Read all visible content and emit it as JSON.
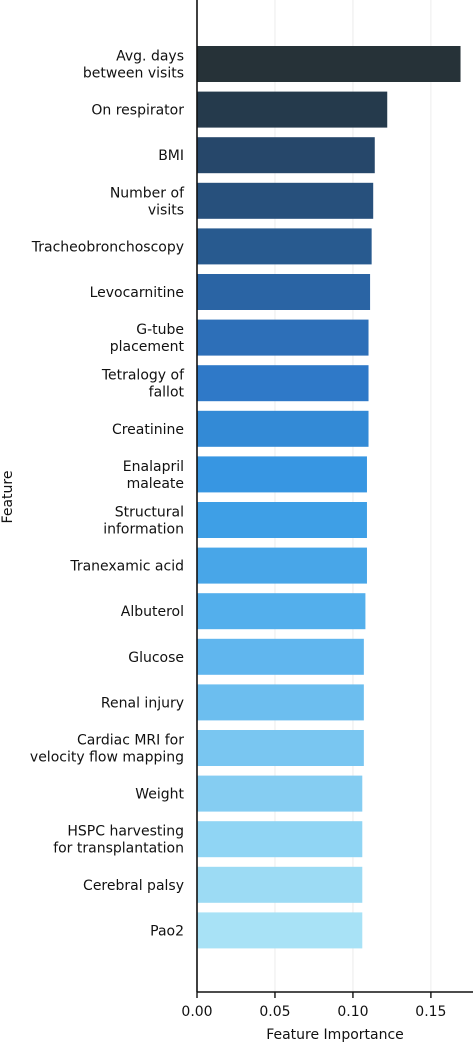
{
  "chart_data": {
    "type": "bar",
    "orientation": "horizontal",
    "title": "",
    "xlabel": "Feature Importance",
    "ylabel": "Feature",
    "xlim": [
      0,
      0.177
    ],
    "xticks": [
      0.0,
      0.05,
      0.1,
      0.15
    ],
    "xtick_labels": [
      "0.00",
      "0.05",
      "0.10",
      "0.15"
    ],
    "grid": "vertical",
    "categories": [
      [
        "Avg. days",
        "between visits"
      ],
      [
        "On respirator"
      ],
      [
        "BMI"
      ],
      [
        "Number of",
        "visits"
      ],
      [
        "Tracheobronchoscopy"
      ],
      [
        "Levocarnitine"
      ],
      [
        "G-tube",
        "placement"
      ],
      [
        "Tetralogy of",
        "fallot"
      ],
      [
        "Creatinine"
      ],
      [
        "Enalapril",
        "maleate"
      ],
      [
        "Structural",
        "information"
      ],
      [
        "Tranexamic acid"
      ],
      [
        "Albuterol"
      ],
      [
        "Glucose"
      ],
      [
        "Renal injury"
      ],
      [
        "Cardiac MRI for",
        "velocity flow mapping"
      ],
      [
        "Weight"
      ],
      [
        "HSPC harvesting",
        "for transplantation"
      ],
      [
        "Cerebral palsy"
      ],
      [
        "Pao2"
      ]
    ],
    "values": [
      0.169,
      0.122,
      0.114,
      0.113,
      0.112,
      0.111,
      0.11,
      0.11,
      0.11,
      0.109,
      0.109,
      0.109,
      0.108,
      0.107,
      0.107,
      0.107,
      0.106,
      0.106,
      0.106,
      0.106
    ],
    "colors": [
      "#263238",
      "#253a4c",
      "#26476a",
      "#27507c",
      "#285a8f",
      "#2a64a4",
      "#2d6fb8",
      "#2f79c8",
      "#338ad6",
      "#3796e2",
      "#3e9fe6",
      "#48a6e8",
      "#53afec",
      "#60b6ee",
      "#6cbeef",
      "#79c6f1",
      "#85cdf2",
      "#90d5f4",
      "#9cdbf4",
      "#a8e2f6"
    ]
  }
}
